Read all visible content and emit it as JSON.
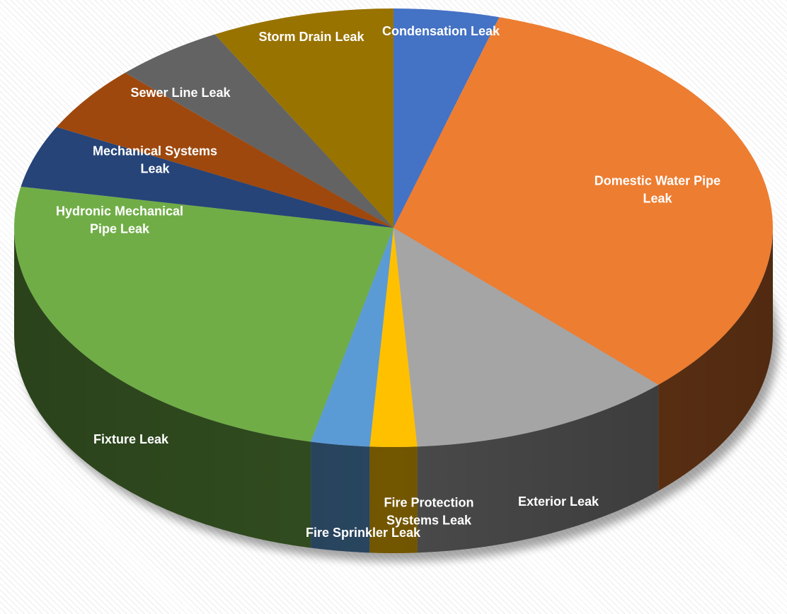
{
  "chart_data": {
    "type": "pie",
    "style": "3d",
    "title": "",
    "slices": [
      {
        "label": "Condensation Leak",
        "lines": [
          "Condensation Leak"
        ],
        "value": 4.5,
        "color": "#4472C4"
      },
      {
        "label": "Domestic Water Pipe Leak",
        "lines": [
          "Domestic Water Pipe",
          "Leak"
        ],
        "value": 33.2,
        "color": "#ED7D31"
      },
      {
        "label": "Exterior Leak",
        "lines": [
          "Exterior Leak"
        ],
        "value": 11.3,
        "color": "#A5A5A5"
      },
      {
        "label": "Fire Protection Systems Leak",
        "lines": [
          "Fire Protection",
          "Systems Leak"
        ],
        "value": 2.0,
        "color": "#FFC000"
      },
      {
        "label": "Fire Sprinkler Leak",
        "lines": [
          "Fire Sprinkler Leak"
        ],
        "value": 2.5,
        "color": "#5B9BD5"
      },
      {
        "label": "Fixture Leak",
        "lines": [
          "Fixture Leak"
        ],
        "value": 24.5,
        "color": "#70AD47"
      },
      {
        "label": "Hydronic Mechanical Pipe Leak",
        "lines": [
          "Hydronic Mechanical",
          "Pipe Leak"
        ],
        "value": 4.6,
        "color": "#264478"
      },
      {
        "label": "Mechanical Systems Leak",
        "lines": [
          "Mechanical Systems",
          "Leak"
        ],
        "value": 4.9,
        "color": "#9E480E"
      },
      {
        "label": "Sewer Line Leak",
        "lines": [
          "Sewer Line Leak"
        ],
        "value": 4.7,
        "color": "#636363"
      },
      {
        "label": "Storm Drain Leak",
        "lines": [
          "Storm Drain Leak"
        ],
        "value": 7.8,
        "color": "#997300"
      }
    ]
  }
}
